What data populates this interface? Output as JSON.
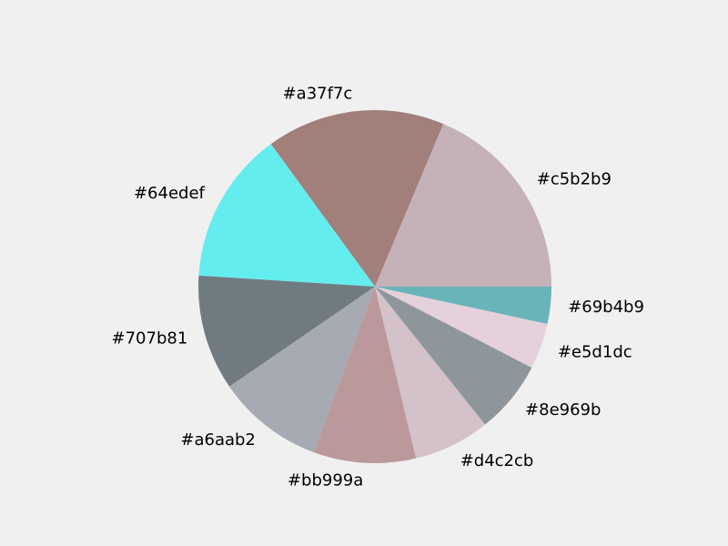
{
  "chart_data": {
    "type": "pie",
    "title": "",
    "start_angle_deg": 0,
    "direction": "counterclockwise",
    "slices": [
      {
        "label": "#c5b2b9",
        "color": "#c5b2b9",
        "value": 18.7
      },
      {
        "label": "#a37f7c",
        "color": "#a37f7c",
        "value": 16.4
      },
      {
        "label": "#64edef",
        "color": "#64edef",
        "value": 14.0
      },
      {
        "label": "#707b81",
        "color": "#707b81",
        "value": 10.6
      },
      {
        "label": "#a6aab2",
        "color": "#a6aab2",
        "value": 9.8
      },
      {
        "label": "#bb999a",
        "color": "#bb999a",
        "value": 9.4
      },
      {
        "label": "#d4c2cb",
        "color": "#d4c2cb",
        "value": 7.0
      },
      {
        "label": "#8e969b",
        "color": "#8e969b",
        "value": 6.7
      },
      {
        "label": "#e5d1dc",
        "color": "#e5d1dc",
        "value": 4.2
      },
      {
        "label": "#69b4b9",
        "color": "#69b4b9",
        "value": 3.4
      }
    ]
  }
}
